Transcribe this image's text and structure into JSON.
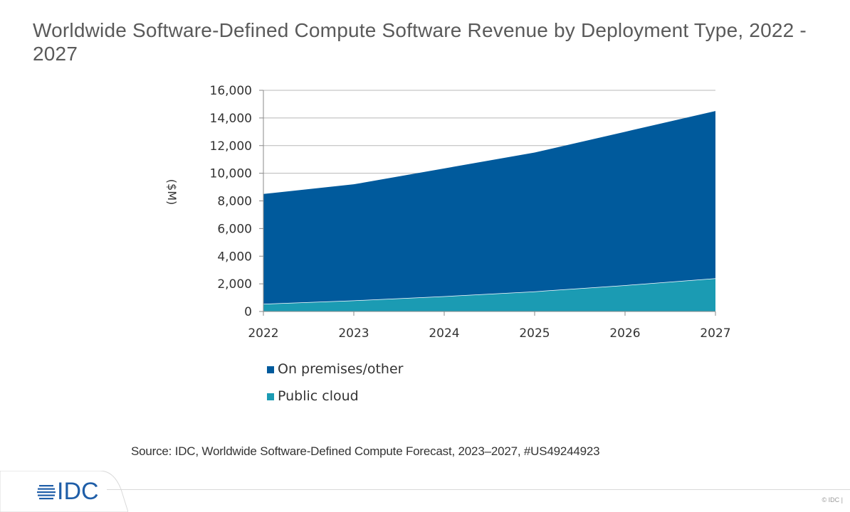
{
  "title": "Worldwide Software-Defined Compute Software Revenue by Deployment Type, 2022 - 2027",
  "source": "Source: IDC, Worldwide Software-Defined Compute Forecast, 2023–2027, #US49244923",
  "logo_text": "IDC",
  "copyright": "© IDC |",
  "chart_data": {
    "type": "area",
    "stacked": true,
    "title": "Worldwide Software-Defined Compute Software Revenue by Deployment Type, 2022 - 2027",
    "xlabel": "",
    "ylabel": "($M)",
    "categories": [
      "2022",
      "2023",
      "2024",
      "2025",
      "2026",
      "2027"
    ],
    "ylim": [
      0,
      16000
    ],
    "yticks": [
      0,
      2000,
      4000,
      6000,
      8000,
      10000,
      12000,
      14000,
      16000
    ],
    "ytick_labels": [
      "0",
      "2,000",
      "4,000",
      "6,000",
      "8,000",
      "10,000",
      "12,000",
      "14,000",
      "16,000"
    ],
    "grid": true,
    "legend_position": "bottom",
    "series": [
      {
        "name": "Public cloud",
        "color": "#1b9bb3",
        "values": [
          550,
          800,
          1100,
          1450,
          1900,
          2400
        ]
      },
      {
        "name": "On premises/other",
        "color": "#005a9c",
        "values": [
          7950,
          8400,
          9250,
          10050,
          11100,
          12100
        ]
      }
    ],
    "legend_order": [
      "On premises/other",
      "Public cloud"
    ]
  }
}
